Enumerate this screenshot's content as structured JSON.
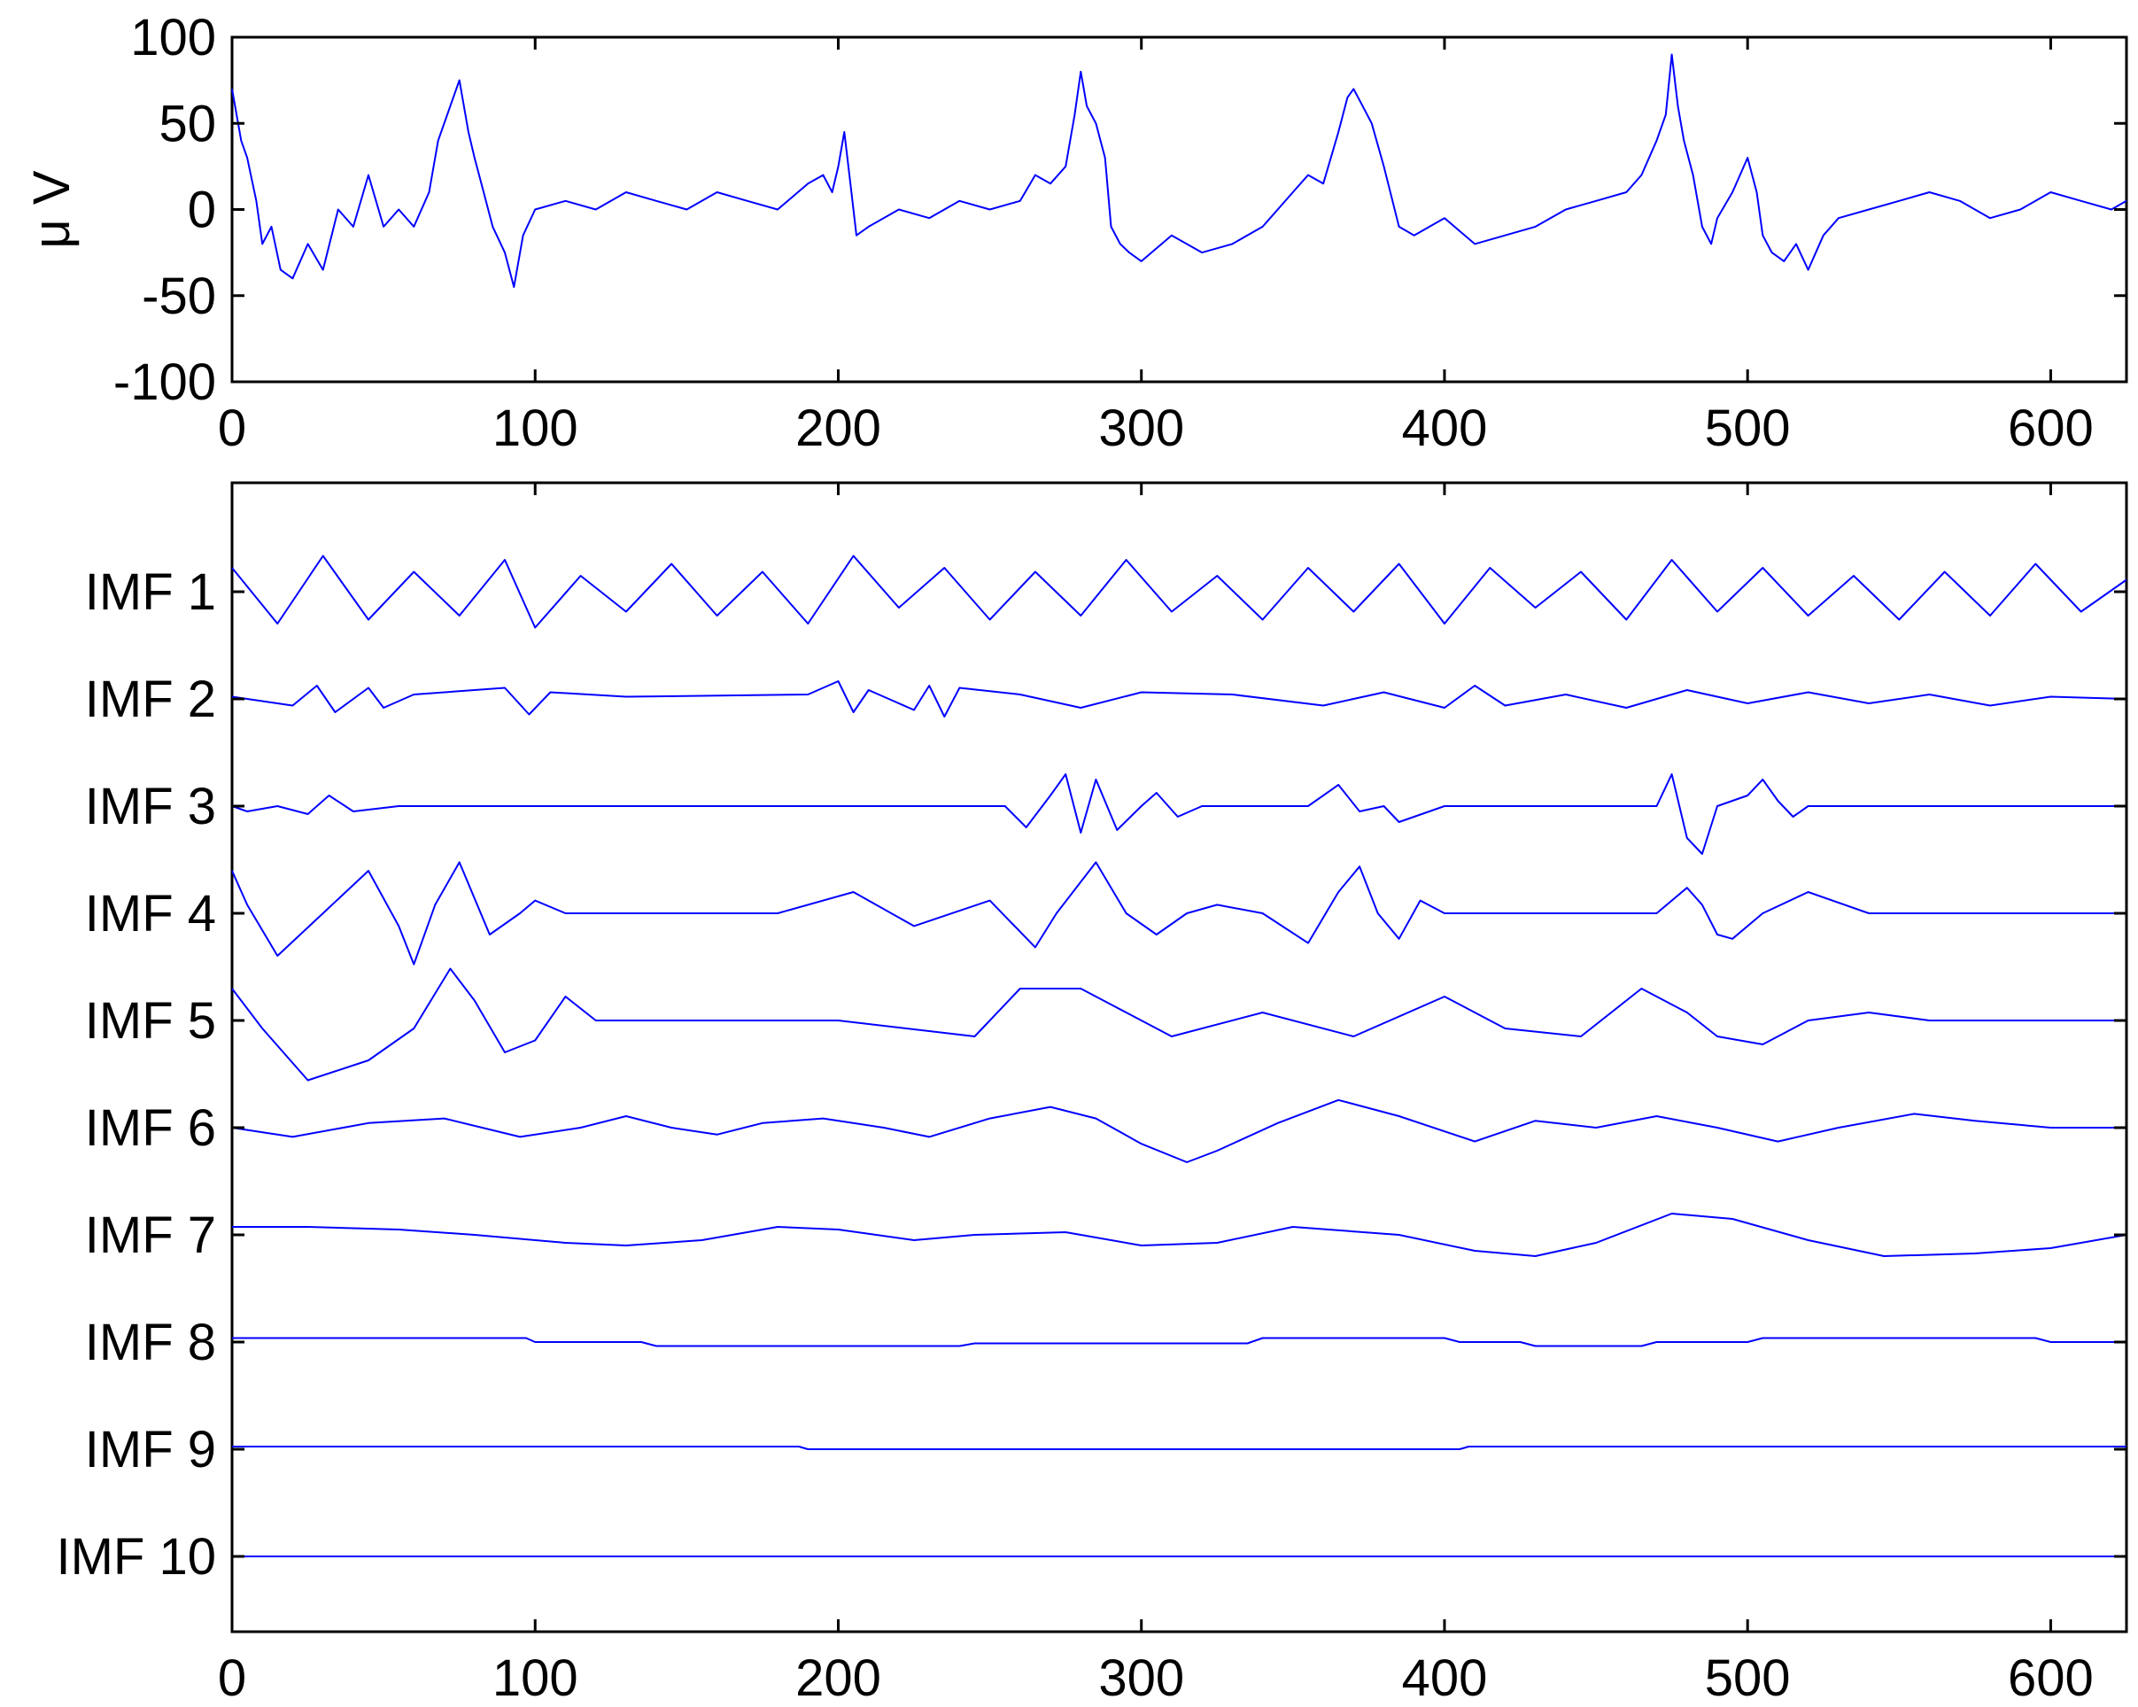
{
  "colors": {
    "trace": "#0000ff",
    "axis": "#000000",
    "background": "#ffffff"
  },
  "chart_data": [
    {
      "type": "line",
      "panel": "signal",
      "ylabel": "μ V",
      "xlim": [
        0,
        625
      ],
      "ylim": [
        -100,
        100
      ],
      "xticks": [
        0,
        100,
        200,
        300,
        400,
        500,
        600
      ],
      "xtick_labels": [
        "0",
        "100",
        "200",
        "300",
        "400",
        "500",
        "600"
      ],
      "yticks": [
        -100,
        -50,
        0,
        50,
        100
      ],
      "ytick_labels": [
        "-100",
        "-50",
        "0",
        "50",
        "100"
      ],
      "grid": false,
      "series": [
        {
          "x": [
            0,
            3,
            5,
            8,
            10,
            13,
            16,
            20,
            25,
            30,
            35,
            40,
            45,
            50,
            55,
            60,
            65,
            68,
            72,
            75,
            78,
            80,
            83,
            86,
            90,
            93,
            96,
            100,
            110,
            120,
            130,
            140,
            150,
            160,
            170,
            180,
            190,
            195,
            198,
            200,
            202,
            204,
            206,
            210,
            220,
            230,
            240,
            250,
            260,
            265,
            270,
            275,
            278,
            280,
            282,
            285,
            288,
            290,
            293,
            296,
            300,
            310,
            320,
            330,
            340,
            350,
            355,
            360,
            365,
            368,
            370,
            373,
            376,
            380,
            385,
            390,
            400,
            410,
            420,
            430,
            440,
            450,
            460,
            465,
            470,
            473,
            475,
            477,
            479,
            482,
            485,
            488,
            490,
            495,
            500,
            503,
            505,
            508,
            512,
            516,
            520,
            525,
            530,
            540,
            550,
            560,
            570,
            580,
            590,
            600,
            610,
            620,
            625
          ],
          "y": [
            70,
            40,
            30,
            5,
            -20,
            -10,
            -35,
            -40,
            -20,
            -35,
            0,
            -10,
            20,
            -10,
            0,
            -10,
            10,
            40,
            60,
            75,
            45,
            30,
            10,
            -10,
            -25,
            -45,
            -15,
            0,
            5,
            0,
            10,
            5,
            0,
            10,
            5,
            0,
            15,
            20,
            10,
            25,
            45,
            15,
            -15,
            -10,
            0,
            -5,
            5,
            0,
            5,
            20,
            15,
            25,
            55,
            80,
            60,
            50,
            30,
            -10,
            -20,
            -25,
            -30,
            -15,
            -25,
            -20,
            -10,
            10,
            20,
            15,
            45,
            65,
            70,
            60,
            50,
            25,
            -10,
            -15,
            -5,
            -20,
            -15,
            -10,
            0,
            5,
            10,
            20,
            40,
            55,
            90,
            60,
            40,
            20,
            -10,
            -20,
            -5,
            10,
            30,
            10,
            -15,
            -25,
            -30,
            -20,
            -35,
            -15,
            -5,
            0,
            5,
            10,
            5,
            -5,
            0,
            10,
            5,
            0,
            5
          ]
        }
      ]
    },
    {
      "type": "line",
      "panel": "imfs",
      "xlim": [
        0,
        625
      ],
      "xticks": [
        0,
        100,
        200,
        300,
        400,
        500,
        600
      ],
      "xtick_labels": [
        "0",
        "100",
        "200",
        "300",
        "400",
        "500",
        "600"
      ],
      "ytick_labels": [
        "IMF 1",
        "IMF 2",
        "IMF 3",
        "IMF 4",
        "IMF 5",
        "IMF 6",
        "IMF 7",
        "IMF 8",
        "IMF 9",
        "IMF 10"
      ],
      "grid": false,
      "series": [
        {
          "name": "IMF 1",
          "x": [
            0,
            15,
            30,
            45,
            60,
            75,
            90,
            100,
            115,
            130,
            145,
            160,
            175,
            190,
            205,
            220,
            235,
            250,
            265,
            280,
            295,
            310,
            325,
            340,
            355,
            370,
            385,
            400,
            415,
            430,
            445,
            460,
            475,
            490,
            505,
            520,
            535,
            550,
            565,
            580,
            595,
            610,
            625
          ],
          "y": [
            0.6,
            -0.8,
            0.9,
            -0.7,
            0.5,
            -0.6,
            0.8,
            -0.9,
            0.4,
            -0.5,
            0.7,
            -0.6,
            0.5,
            -0.8,
            0.9,
            -0.4,
            0.6,
            -0.7,
            0.5,
            -0.6,
            0.8,
            -0.5,
            0.4,
            -0.7,
            0.6,
            -0.5,
            0.7,
            -0.8,
            0.6,
            -0.4,
            0.5,
            -0.7,
            0.8,
            -0.5,
            0.6,
            -0.6,
            0.4,
            -0.7,
            0.5,
            -0.6,
            0.7,
            -0.5,
            0.3
          ]
        },
        {
          "name": "IMF 2",
          "x": [
            0,
            20,
            28,
            34,
            45,
            50,
            60,
            90,
            98,
            105,
            130,
            190,
            200,
            205,
            210,
            225,
            230,
            235,
            240,
            260,
            280,
            300,
            330,
            360,
            380,
            400,
            410,
            420,
            440,
            460,
            480,
            500,
            520,
            540,
            560,
            580,
            600,
            625
          ],
          "y": [
            0.1,
            -0.3,
            0.6,
            -0.6,
            0.5,
            -0.4,
            0.2,
            0.5,
            -0.7,
            0.3,
            0.1,
            0.2,
            0.8,
            -0.6,
            0.4,
            -0.5,
            0.6,
            -0.8,
            0.5,
            0.2,
            -0.4,
            0.3,
            0.2,
            -0.3,
            0.3,
            -0.4,
            0.6,
            -0.3,
            0.2,
            -0.4,
            0.4,
            -0.2,
            0.3,
            -0.2,
            0.2,
            -0.3,
            0.1,
            0.0
          ]
        },
        {
          "name": "IMF 3",
          "x": [
            0,
            5,
            15,
            25,
            32,
            40,
            55,
            80,
            110,
            150,
            200,
            230,
            255,
            262,
            270,
            275,
            280,
            285,
            292,
            300,
            305,
            312,
            320,
            340,
            355,
            365,
            372,
            380,
            385,
            400,
            440,
            470,
            475,
            480,
            485,
            490,
            500,
            505,
            510,
            515,
            520,
            540,
            560,
            580,
            600,
            625
          ],
          "y": [
            0.0,
            -0.2,
            0.0,
            -0.3,
            0.4,
            -0.2,
            0.0,
            0.0,
            0.0,
            0.0,
            0.0,
            0.0,
            0.0,
            -0.8,
            0.4,
            1.2,
            -1.0,
            1.0,
            -0.9,
            0.0,
            0.5,
            -0.4,
            0.0,
            0.0,
            0.0,
            0.8,
            -0.2,
            0.0,
            -0.6,
            0.0,
            0.0,
            0.0,
            1.2,
            -1.2,
            -1.8,
            0.0,
            0.4,
            1.0,
            0.2,
            -0.4,
            0.0,
            0.0,
            0.0,
            0.0,
            0.0,
            0.0
          ]
        },
        {
          "name": "IMF 4",
          "x": [
            0,
            5,
            15,
            30,
            45,
            55,
            60,
            67,
            75,
            85,
            95,
            100,
            110,
            150,
            180,
            205,
            225,
            250,
            265,
            272,
            285,
            295,
            305,
            315,
            325,
            340,
            355,
            365,
            372,
            378,
            385,
            392,
            400,
            420,
            450,
            470,
            480,
            485,
            490,
            495,
            505,
            520,
            540,
            560,
            600,
            625
          ],
          "y": [
            1.0,
            0.2,
            -1.0,
            0.0,
            1.0,
            -0.3,
            -1.2,
            0.2,
            1.2,
            -0.5,
            0.0,
            0.3,
            0.0,
            0.0,
            0.0,
            0.5,
            -0.3,
            0.3,
            -0.8,
            0.0,
            1.2,
            0.0,
            -0.5,
            0.0,
            0.2,
            0.0,
            -0.7,
            0.5,
            1.1,
            0.0,
            -0.6,
            0.3,
            0.0,
            0.0,
            0.0,
            0.0,
            0.6,
            0.2,
            -0.5,
            -0.6,
            0.0,
            0.5,
            0.0,
            0.0,
            0.0,
            0.0
          ]
        },
        {
          "name": "IMF 5",
          "x": [
            0,
            10,
            25,
            45,
            60,
            72,
            80,
            90,
            100,
            110,
            120,
            135,
            160,
            200,
            245,
            260,
            280,
            290,
            310,
            340,
            370,
            400,
            420,
            445,
            465,
            480,
            490,
            505,
            520,
            540,
            560,
            580,
            600,
            625
          ],
          "y": [
            0.8,
            -0.2,
            -1.5,
            -1.0,
            -0.2,
            1.3,
            0.5,
            -0.8,
            -0.5,
            0.6,
            0.0,
            0.0,
            0.0,
            0.0,
            -0.4,
            0.8,
            0.8,
            0.4,
            -0.4,
            0.2,
            -0.4,
            0.6,
            -0.2,
            -0.4,
            0.8,
            0.2,
            -0.4,
            -0.6,
            0.0,
            0.2,
            0.0,
            0.0,
            0.0,
            0.0
          ]
        },
        {
          "name": "IMF 6",
          "x": [
            0,
            20,
            45,
            70,
            95,
            115,
            130,
            145,
            160,
            175,
            195,
            215,
            230,
            250,
            270,
            285,
            300,
            315,
            325,
            345,
            365,
            385,
            410,
            430,
            450,
            470,
            490,
            510,
            530,
            555,
            575,
            600,
            625
          ],
          "y": [
            0.0,
            -0.4,
            0.2,
            0.4,
            -0.4,
            0.0,
            0.5,
            0.0,
            -0.3,
            0.2,
            0.4,
            0.0,
            -0.4,
            0.4,
            0.9,
            0.4,
            -0.7,
            -1.5,
            -1.0,
            0.2,
            1.2,
            0.5,
            -0.6,
            0.3,
            0.0,
            0.5,
            0.0,
            -0.6,
            0.0,
            0.6,
            0.3,
            0.0,
            0.0
          ]
        },
        {
          "name": "IMF 7",
          "x": [
            0,
            25,
            55,
            80,
            110,
            130,
            155,
            180,
            200,
            225,
            245,
            275,
            300,
            325,
            350,
            385,
            410,
            430,
            450,
            475,
            495,
            520,
            545,
            575,
            600,
            625
          ],
          "y": [
            0.3,
            0.3,
            0.2,
            0.0,
            -0.3,
            -0.4,
            -0.2,
            0.3,
            0.2,
            -0.2,
            0.0,
            0.1,
            -0.4,
            -0.3,
            0.3,
            0.0,
            -0.6,
            -0.8,
            -0.3,
            0.8,
            0.6,
            -0.2,
            -0.8,
            -0.7,
            -0.5,
            0.0
          ]
        },
        {
          "name": "IMF 8",
          "x": [
            0,
            97,
            100,
            135,
            140,
            240,
            245,
            335,
            340,
            400,
            405,
            425,
            430,
            465,
            470,
            500,
            505,
            595,
            600,
            625
          ],
          "y": [
            0.3,
            0.3,
            0.0,
            0.0,
            -0.3,
            -0.3,
            -0.1,
            -0.1,
            0.3,
            0.3,
            0.0,
            0.0,
            -0.3,
            -0.3,
            0.0,
            0.0,
            0.3,
            0.3,
            0.0,
            0.0
          ]
        },
        {
          "name": "IMF 9",
          "x": [
            0,
            187,
            190,
            405,
            408,
            625
          ],
          "y": [
            0.3,
            0.3,
            0.0,
            0.0,
            0.3,
            0.3
          ]
        },
        {
          "name": "IMF 10",
          "x": [
            0,
            625
          ],
          "y": [
            0.0,
            0.0
          ]
        }
      ]
    }
  ]
}
